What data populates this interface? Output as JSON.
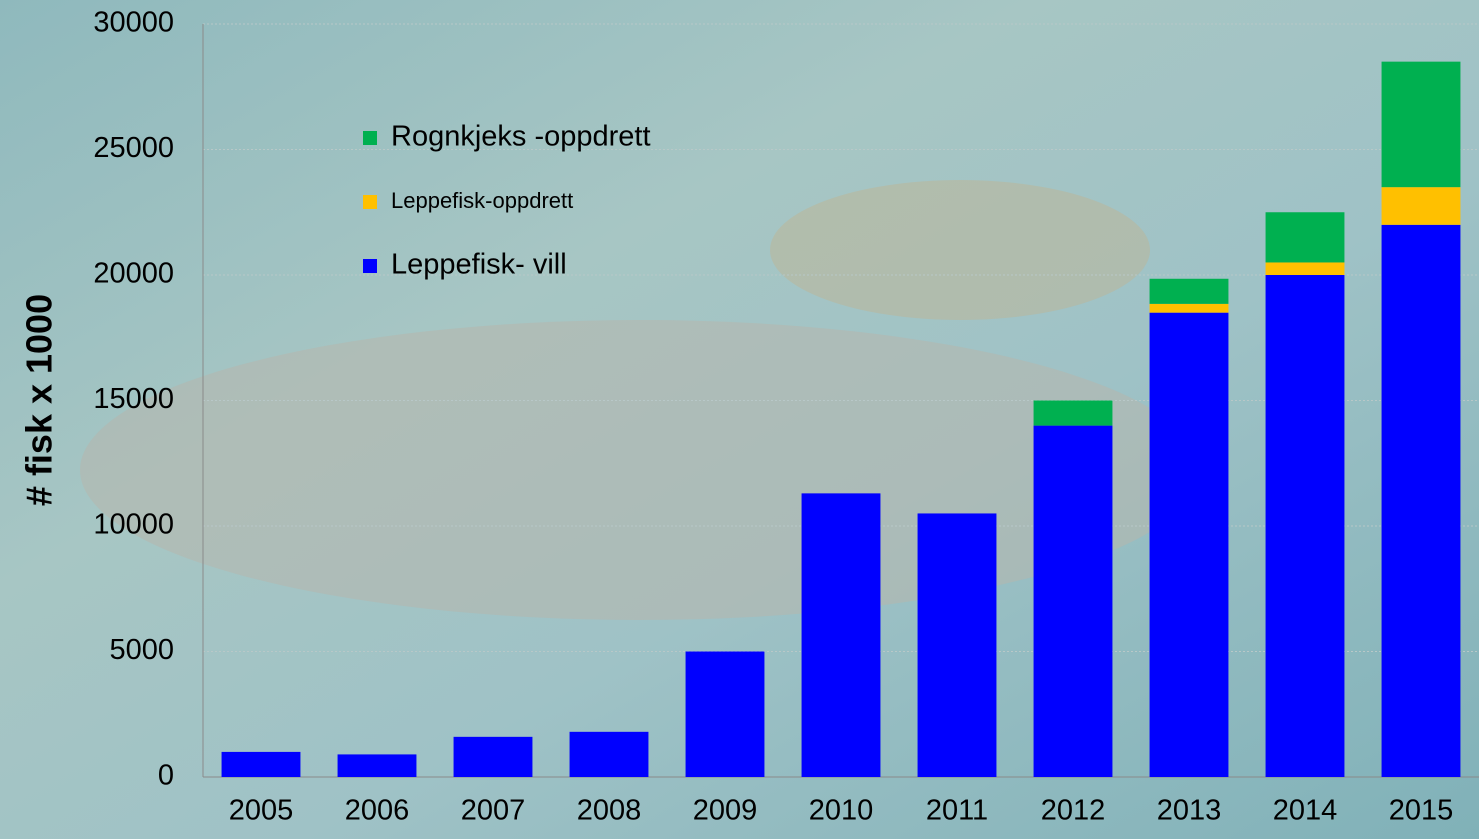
{
  "chart_data": {
    "type": "stacked_bar",
    "y_label": "# fisk x 1000",
    "categories": [
      "2005",
      "2006",
      "2007",
      "2008",
      "2009",
      "2010",
      "2011",
      "2012",
      "2013",
      "2014",
      "2015"
    ],
    "series": [
      {
        "name": "Leppefisk- vill",
        "color": "#0000ff",
        "values": [
          1000,
          900,
          1600,
          1800,
          5000,
          11300,
          10500,
          14000,
          18500,
          20000,
          22000
        ]
      },
      {
        "name": "Leppefisk-oppdrett",
        "color": "#ffc000",
        "values": [
          0,
          0,
          0,
          0,
          0,
          0,
          0,
          0,
          350,
          500,
          1500
        ]
      },
      {
        "name": "Rognkjeks -oppdrett",
        "color": "#00b050",
        "values": [
          0,
          0,
          0,
          0,
          0,
          0,
          0,
          1000,
          1000,
          2000,
          5000
        ]
      }
    ],
    "ylim": [
      0,
      30000
    ],
    "yticks": [
      0,
      5000,
      10000,
      15000,
      20000,
      25000,
      30000
    ],
    "grid": true
  }
}
